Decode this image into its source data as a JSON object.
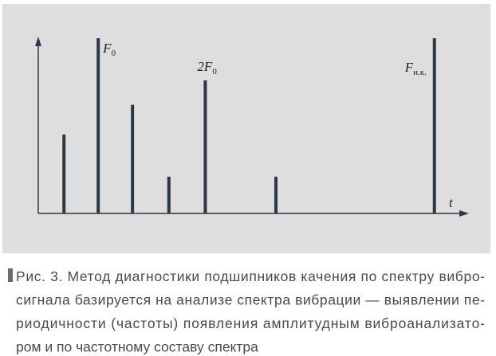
{
  "chart_data": {
    "type": "bar",
    "x": [
      6,
      14,
      22,
      30.5,
      39,
      55.5,
      92.5
    ],
    "values": [
      45,
      100,
      62,
      21,
      76,
      21,
      100
    ],
    "bar_labels": [
      null,
      {
        "main": "F",
        "sub": "0"
      },
      null,
      null,
      {
        "main": "2F",
        "sub": "0"
      },
      null,
      {
        "main": "F",
        "sub": "н.к."
      }
    ],
    "xlabel": "t",
    "xlim": [
      0,
      100
    ],
    "ylim": [
      0,
      100
    ],
    "grid": false,
    "color": "#2c3944",
    "caption": [
      "Рис. 3. Метод диагностики подшипников качения по спектру вибро-",
      "сигнала базируется на анализе спектра вибрации — выявлении пе-",
      "риодичности (частоты) появления амплитудным виброанализато-",
      "ром и по частотному составу спектра"
    ]
  }
}
